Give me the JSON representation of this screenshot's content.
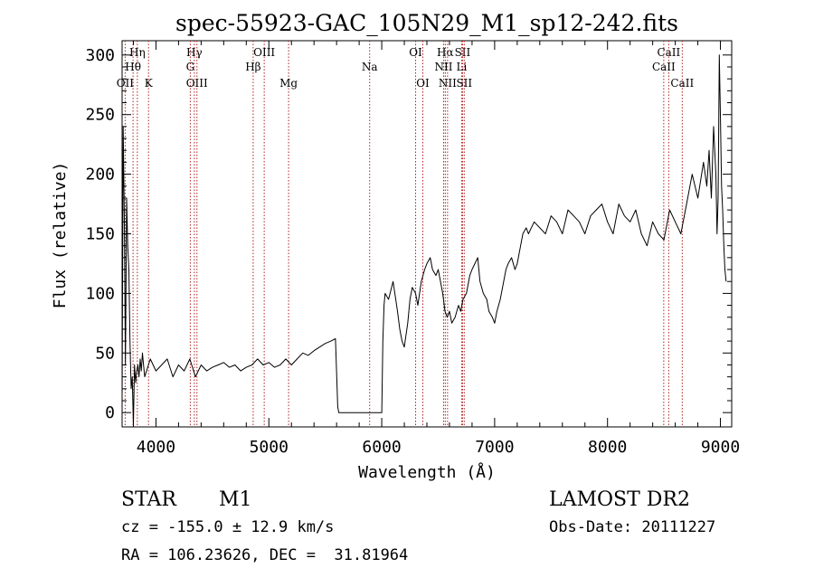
{
  "chart_data": {
    "type": "line",
    "title": "spec-55923-GAC_105N29_M1_sp12-242.fits",
    "xlabel": "Wavelength (Å)",
    "ylabel": "Flux (relative)",
    "xlim": [
      3700,
      9100
    ],
    "ylim": [
      -12,
      312
    ],
    "x_ticks": [
      "4000",
      "5000",
      "6000",
      "7000",
      "8000",
      "9000"
    ],
    "y_ticks": [
      "0",
      "50",
      "100",
      "150",
      "200",
      "250",
      "300"
    ],
    "grid": false,
    "series": [
      {
        "x": [
          3700,
          3710,
          3720,
          3730,
          3740,
          3750,
          3760,
          3770,
          3780,
          3790,
          3800,
          3810,
          3820,
          3830,
          3840,
          3850,
          3860,
          3870,
          3880,
          3890,
          3900,
          3950,
          4000,
          4050,
          4100,
          4150,
          4200,
          4250,
          4300,
          4350,
          4400,
          4450,
          4500,
          4550,
          4600,
          4650,
          4700,
          4750,
          4800,
          4850,
          4900,
          4950,
          5000,
          5050,
          5100,
          5150,
          5200,
          5250,
          5300,
          5350,
          5400,
          5450,
          5500,
          5550,
          5590,
          5600,
          5610,
          5620,
          5700,
          5800,
          5900,
          6000,
          6010,
          6020,
          6030,
          6060,
          6100,
          6140,
          6160,
          6180,
          6200,
          6230,
          6250,
          6270,
          6300,
          6320,
          6350,
          6380,
          6400,
          6430,
          6450,
          6480,
          6500,
          6520,
          6540,
          6560,
          6580,
          6600,
          6620,
          6650,
          6680,
          6700,
          6720,
          6750,
          6780,
          6800,
          6850,
          6870,
          6900,
          6930,
          6950,
          6980,
          7000,
          7020,
          7050,
          7080,
          7100,
          7120,
          7150,
          7180,
          7200,
          7230,
          7250,
          7280,
          7300,
          7350,
          7400,
          7450,
          7500,
          7550,
          7600,
          7650,
          7700,
          7750,
          7800,
          7850,
          7900,
          7950,
          8000,
          8050,
          8100,
          8150,
          8200,
          8250,
          8300,
          8350,
          8400,
          8450,
          8500,
          8550,
          8600,
          8650,
          8700,
          8750,
          8800,
          8850,
          8880,
          8900,
          8920,
          8940,
          8960,
          8970,
          8980,
          8990,
          9000,
          9010,
          9020,
          9030,
          9040,
          9050
        ],
        "values": [
          10,
          240,
          160,
          40,
          180,
          140,
          120,
          60,
          20,
          30,
          -10,
          40,
          25,
          35,
          40,
          30,
          45,
          35,
          50,
          40,
          30,
          45,
          35,
          40,
          45,
          30,
          40,
          35,
          45,
          30,
          40,
          35,
          38,
          40,
          42,
          38,
          40,
          35,
          38,
          40,
          45,
          40,
          42,
          38,
          40,
          45,
          40,
          45,
          50,
          48,
          52,
          55,
          58,
          60,
          62,
          35,
          5,
          0,
          0,
          0,
          0,
          0,
          60,
          90,
          100,
          95,
          110,
          85,
          70,
          60,
          55,
          75,
          95,
          105,
          100,
          90,
          110,
          120,
          125,
          130,
          120,
          115,
          120,
          110,
          100,
          85,
          80,
          85,
          75,
          80,
          90,
          85,
          95,
          100,
          115,
          120,
          130,
          110,
          100,
          95,
          85,
          80,
          75,
          85,
          95,
          110,
          120,
          125,
          130,
          120,
          125,
          140,
          150,
          155,
          150,
          160,
          155,
          150,
          165,
          160,
          150,
          170,
          165,
          160,
          150,
          165,
          170,
          175,
          160,
          150,
          175,
          165,
          160,
          170,
          150,
          140,
          160,
          150,
          145,
          170,
          160,
          150,
          175,
          200,
          180,
          210,
          190,
          220,
          180,
          240,
          200,
          150,
          180,
          300,
          250,
          190,
          170,
          140,
          120,
          110
        ]
      }
    ],
    "line_markers": [
      {
        "label": "Hη",
        "x": 3835,
        "row": 0
      },
      {
        "label": "Hθ",
        "x": 3797,
        "row": 1
      },
      {
        "label": "OII",
        "x": 3727,
        "row": 2
      },
      {
        "label": "K",
        "x": 3934,
        "row": 2
      },
      {
        "label": "Hγ",
        "x": 4340,
        "row": 0
      },
      {
        "label": "G",
        "x": 4304,
        "row": 1
      },
      {
        "label": "OIII",
        "x": 4363,
        "row": 2
      },
      {
        "label": "OIII",
        "x": 4959,
        "row": 0
      },
      {
        "label": "Hβ",
        "x": 4861,
        "row": 1
      },
      {
        "label": "Mg",
        "x": 5175,
        "row": 2
      },
      {
        "label": "Na",
        "x": 5893,
        "row": 1
      },
      {
        "label": "OI",
        "x": 6300,
        "row": 0
      },
      {
        "label": "OI",
        "x": 6364,
        "row": 2
      },
      {
        "label": "Hα",
        "x": 6563,
        "row": 0
      },
      {
        "label": "SII",
        "x": 6716,
        "row": 0
      },
      {
        "label": "NII",
        "x": 6548,
        "row": 1
      },
      {
        "label": "Li",
        "x": 6708,
        "row": 1
      },
      {
        "label": "NII",
        "x": 6583,
        "row": 2
      },
      {
        "label": "SII",
        "x": 6731,
        "row": 2
      },
      {
        "label": "CaII",
        "x": 8542,
        "row": 0
      },
      {
        "label": "CaII",
        "x": 8498,
        "row": 1
      },
      {
        "label": "CaII",
        "x": 8662,
        "row": 2
      }
    ]
  },
  "info": {
    "object_class": "STAR",
    "subclass": "M1",
    "survey": "LAMOST DR2",
    "cz": "cz = -155.0 ± 12.9 km/s",
    "obs_date": "Obs-Date: 20111227",
    "radec": "RA = 106.23626, DEC =  31.81964"
  },
  "colors": {
    "spectrum": "#000000",
    "markers": "#b22222"
  }
}
